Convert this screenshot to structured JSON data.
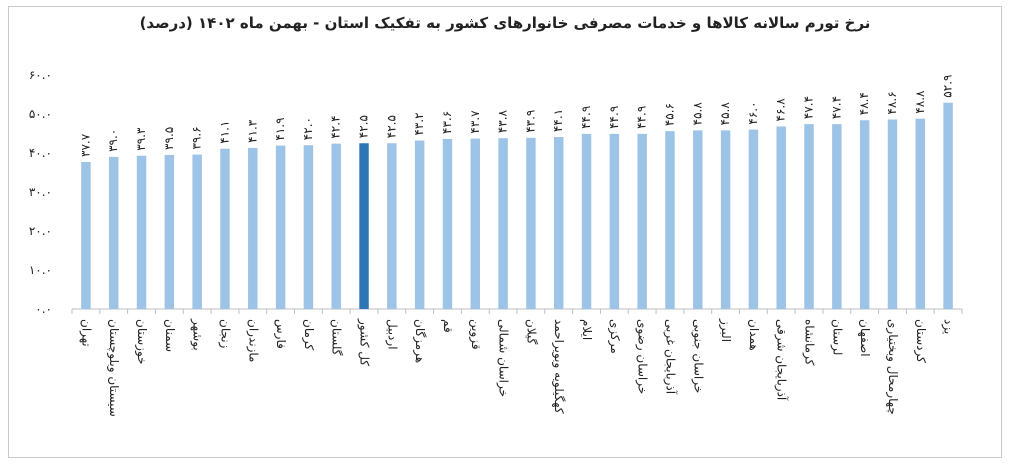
{
  "chart_data": {
    "type": "bar",
    "title": "نرخ تورم سالانه کالاها و خدمات مصرفی خانوارهای کشور به تفکیک استان - بهمن ماه ۱۴۰۲ (درصد)",
    "xlabel": "",
    "ylabel": "",
    "ylim": [
      0,
      60
    ],
    "yticks": [
      0,
      10,
      20,
      30,
      40,
      50,
      60
    ],
    "ytick_labels": [
      "۰.۰",
      "۱۰.۰",
      "۲۰.۰",
      "۳۰.۰",
      "۴۰.۰",
      "۵۰.۰",
      "۶۰.۰"
    ],
    "grid": false,
    "legend": "none",
    "colors": {
      "bar": "#9dc3e6",
      "highlight": "#2e75b6",
      "axis": "#bfbfbf",
      "text": "#222222"
    },
    "highlight_category": "کل کشور",
    "categories": [
      "تهران",
      "سیستان وبلوچستان",
      "خوزستان",
      "سمنان",
      "بوشهر",
      "زنجان",
      "مازندران",
      "فارس",
      "کرمان",
      "گلستان",
      "کل کشور",
      "اردبیل",
      "هرمزگان",
      "قم",
      "قزوین",
      "خراسان شمالی",
      "گیلان",
      "کهگیلویه وبویراحمد",
      "ایلام",
      "مرکزی",
      "خراسان رضوی",
      "آذربایجان غربی",
      "خراسان جنوبی",
      "البرز",
      "همدان",
      "آذربایجان شرقی",
      "کرمانشاه",
      "لرستان",
      "اصفهان",
      "چهارمحال وبختیاری",
      "کردستان",
      "یزد"
    ],
    "values": [
      37.7,
      39.0,
      39.3,
      39.5,
      39.6,
      41.1,
      41.3,
      41.9,
      42.0,
      42.4,
      42.5,
      42.5,
      43.2,
      43.6,
      43.7,
      43.8,
      43.9,
      44.1,
      44.9,
      44.9,
      44.9,
      45.6,
      45.8,
      45.8,
      46.0,
      46.8,
      47.4,
      47.4,
      48.4,
      48.6,
      48.8,
      52.9
    ],
    "value_labels": [
      "۳۷.۷",
      "۳۹.۰",
      "۳۹.۳",
      "۳۹.۵",
      "۳۹.۶",
      "۴۱.۱",
      "۴۱.۳",
      "۴۱.۹",
      "۴۲.۰",
      "۴۲.۴",
      "۴۲.۵",
      "۴۲.۵",
      "۴۳.۲",
      "۴۳.۶",
      "۴۳.۷",
      "۴۳.۸",
      "۴۳.۹",
      "۴۴.۱",
      "۴۴.۹",
      "۴۴.۹",
      "۴۴.۹",
      "۴۵.۶",
      "۴۵.۸",
      "۴۵.۸",
      "۴۶.۰",
      "۴۶.۸",
      "۴۷.۴",
      "۴۷.۴",
      "۴۸.۴",
      "۴۸.۶",
      "۴۸.۸",
      "۵۲.۹"
    ]
  }
}
